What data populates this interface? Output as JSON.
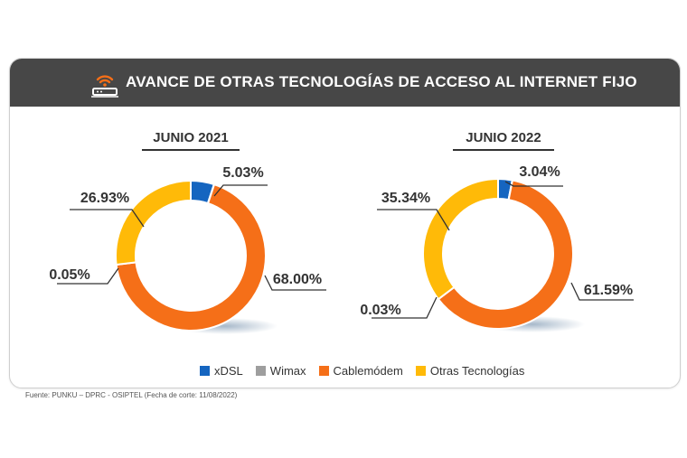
{
  "header": {
    "title": "AVANCE DE OTRAS TECNOLOGÍAS DE ACCESO AL INTERNET FIJO"
  },
  "colors": {
    "header_bg": "#474747",
    "xDSL": "#1565C0",
    "Wimax": "#9E9E9E",
    "Cablemodem": "#F56F18",
    "Otras": "#FFBA08"
  },
  "chart_data": [
    {
      "type": "pie",
      "title": "JUNIO 2021",
      "labels": [
        "xDSL",
        "Wimax",
        "Cablemódem",
        "Otras Tecnologías"
      ],
      "values": [
        5.03,
        0.05,
        68.0,
        26.93
      ],
      "value_labels": [
        "5.03%",
        "0.05%",
        "68.00%",
        "26.93%"
      ]
    },
    {
      "type": "pie",
      "title": "JUNIO 2022",
      "labels": [
        "xDSL",
        "Wimax",
        "Cablemódem",
        "Otras Tecnologías"
      ],
      "values": [
        3.04,
        0.03,
        61.59,
        35.34
      ],
      "value_labels": [
        "3.04%",
        "0.03%",
        "61.59%",
        "35.34%"
      ]
    }
  ],
  "legend": {
    "items": [
      {
        "label": "xDSL",
        "color": "#1565C0"
      },
      {
        "label": "Wimax",
        "color": "#9E9E9E"
      },
      {
        "label": "Cablemódem",
        "color": "#F56F18"
      },
      {
        "label": "Otras Tecnologías",
        "color": "#FFBA08"
      }
    ]
  },
  "footnote": "Fuente: PUNKU – DPRC - OSIPTEL (Fecha de corte: 11/08/2022)"
}
